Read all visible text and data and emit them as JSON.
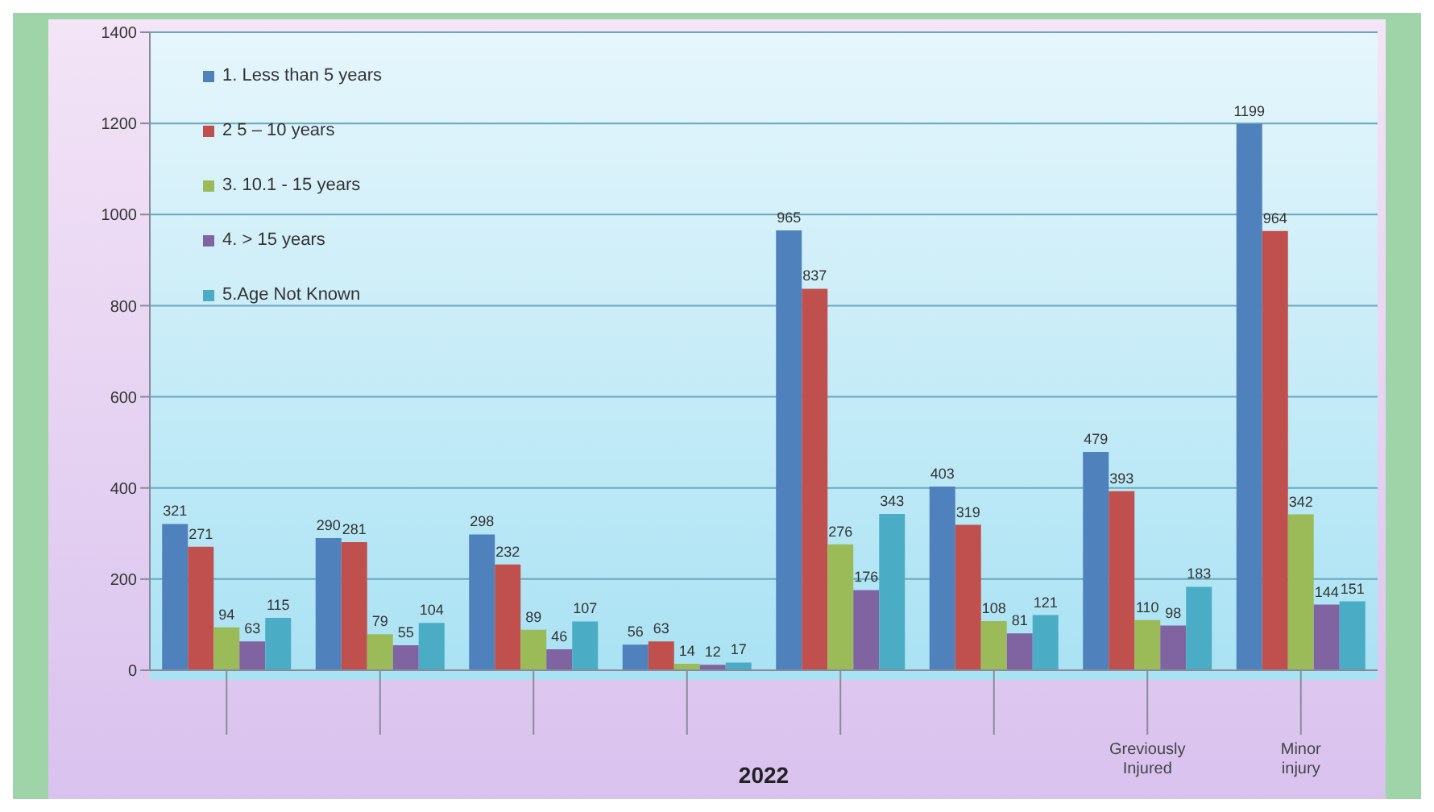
{
  "chart_data": {
    "type": "bar",
    "xlabel": "2022",
    "categories": [
      null,
      null,
      null,
      null,
      null,
      null,
      "Greviously Injured",
      "Minor injury"
    ],
    "series": [
      {
        "name": "1. Less than 5 years",
        "color": "#4f81bd",
        "values": [
          321,
          290,
          298,
          56,
          965,
          403,
          479,
          1199
        ]
      },
      {
        "name": "2  5 – 10 years",
        "color": "#c0504d",
        "values": [
          271,
          281,
          232,
          63,
          837,
          319,
          393,
          964
        ]
      },
      {
        "name": "3. 10.1 - 15 years",
        "color": "#9bbb59",
        "values": [
          94,
          79,
          89,
          14,
          276,
          108,
          110,
          342
        ]
      },
      {
        "name": "4. > 15 years",
        "color": "#8064a2",
        "values": [
          63,
          55,
          46,
          12,
          176,
          81,
          98,
          144
        ]
      },
      {
        "name": "5.Age Not Known",
        "color": "#4bacc6",
        "values": [
          115,
          104,
          107,
          17,
          343,
          121,
          183,
          151
        ]
      }
    ],
    "ylim": [
      0,
      1400
    ],
    "yticks": [
      0,
      200,
      400,
      600,
      800,
      1000,
      1200,
      1400
    ],
    "grid": "y",
    "legend": "top left",
    "data_labels": true
  }
}
